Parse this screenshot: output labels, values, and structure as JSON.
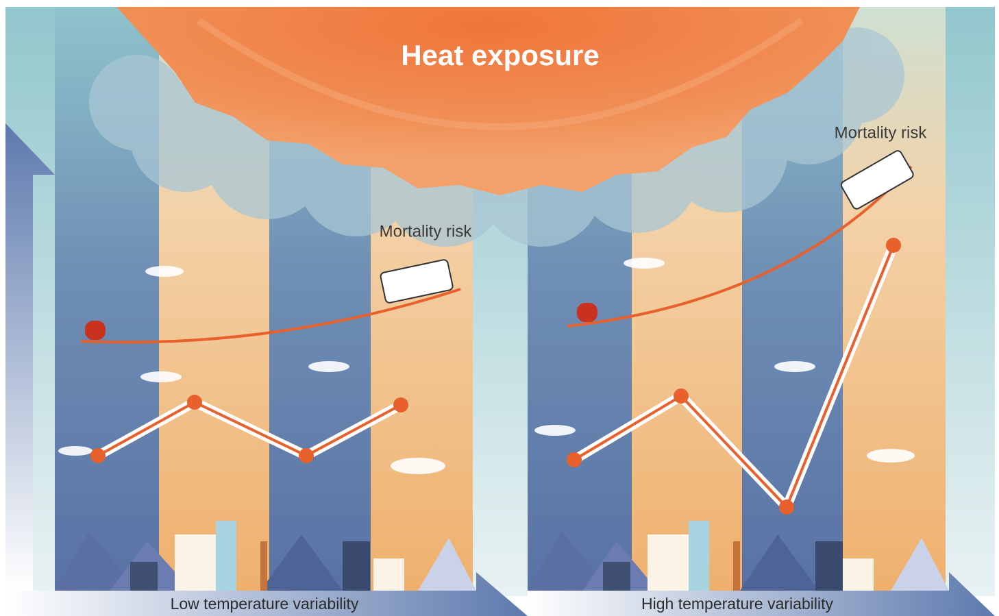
{
  "title": "Heat exposure",
  "panels": [
    {
      "risk_label": "Mortality risk",
      "caption": "Low temperature variability"
    },
    {
      "risk_label": "Mortality risk",
      "caption": "High temperature variability"
    }
  ]
}
